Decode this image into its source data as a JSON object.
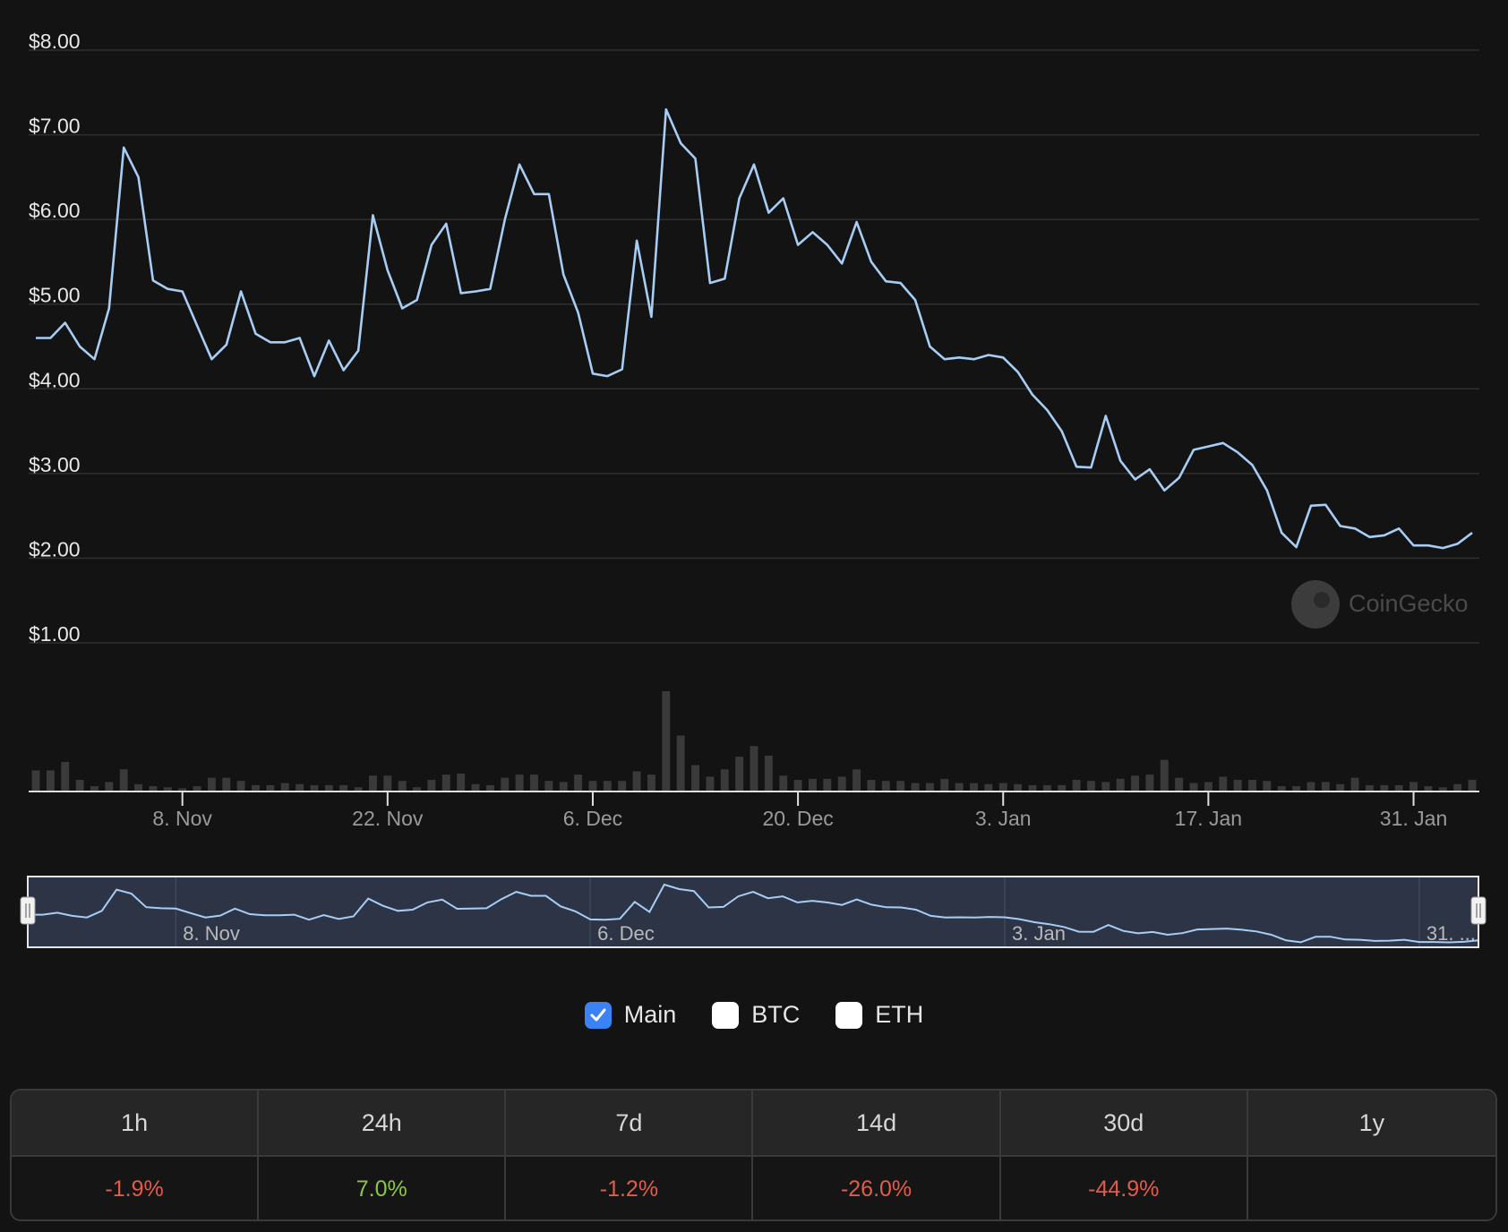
{
  "chart_data": {
    "type": "line",
    "series": [
      {
        "values": [
          4.6,
          4.6,
          4.78,
          4.5,
          4.35,
          4.95,
          6.85,
          6.5,
          5.28,
          5.18,
          5.15,
          4.75,
          4.35,
          4.52,
          5.15,
          4.65,
          4.55,
          4.55,
          4.6,
          4.15,
          4.57,
          4.22,
          4.45,
          6.05,
          5.4,
          4.95,
          5.05,
          5.7,
          5.95,
          5.13,
          5.15,
          5.18,
          6.0,
          6.65,
          6.3,
          6.3,
          5.35,
          4.9,
          4.18,
          4.15,
          4.23,
          5.75,
          4.85,
          7.3,
          6.9,
          6.72,
          5.25,
          5.3,
          6.25,
          6.65,
          6.08,
          6.25,
          5.7,
          5.85,
          5.7,
          5.48,
          5.97,
          5.5,
          5.27,
          5.25,
          5.05,
          4.5,
          4.35,
          4.37,
          4.35,
          4.4,
          4.37,
          4.2,
          3.93,
          3.75,
          3.5,
          3.08,
          3.07,
          3.68,
          3.15,
          2.93,
          3.05,
          2.8,
          2.95,
          3.28,
          3.32,
          3.36,
          3.25,
          3.1,
          2.8,
          2.3,
          2.13,
          2.62,
          2.63,
          2.38,
          2.35,
          2.25,
          2.27,
          2.35,
          2.15,
          2.15,
          2.12,
          2.17,
          2.3
        ]
      }
    ],
    "volume": [
      2.0,
      2.0,
      2.8,
      1.1,
      0.5,
      0.9,
      2.1,
      0.7,
      0.5,
      0.4,
      0.3,
      0.5,
      1.3,
      1.3,
      1.0,
      0.6,
      0.6,
      0.8,
      0.7,
      0.6,
      0.6,
      0.6,
      0.4,
      1.5,
      1.5,
      1.0,
      0.4,
      1.1,
      1.6,
      1.7,
      0.7,
      0.6,
      1.3,
      1.6,
      1.6,
      1.0,
      0.9,
      1.6,
      1.0,
      1.0,
      1.0,
      1.9,
      1.6,
      9.5,
      5.3,
      2.5,
      1.4,
      2.1,
      3.3,
      4.3,
      3.4,
      1.5,
      1.1,
      1.2,
      1.2,
      1.4,
      2.1,
      1.1,
      1.0,
      1.0,
      0.8,
      0.8,
      1.2,
      0.8,
      0.8,
      0.7,
      0.8,
      0.7,
      0.6,
      0.6,
      0.6,
      1.1,
      1.0,
      0.9,
      1.2,
      1.5,
      1.6,
      3.0,
      1.3,
      0.8,
      0.9,
      1.4,
      1.1,
      1.1,
      1.0,
      0.5,
      0.5,
      0.9,
      0.9,
      0.7,
      1.3,
      0.6,
      0.6,
      0.6,
      0.9,
      0.5,
      0.4,
      0.7,
      1.1
    ],
    "ylim": [
      1,
      8
    ],
    "y_ticks": [
      "$8.00",
      "$7.00",
      "$6.00",
      "$5.00",
      "$4.00",
      "$3.00",
      "$2.00",
      "$1.00"
    ],
    "y_tick_values": [
      8,
      7,
      6,
      5,
      4,
      3,
      2,
      1
    ],
    "x_ticks": [
      {
        "label": "8. Nov",
        "index": 10
      },
      {
        "label": "22. Nov",
        "index": 24
      },
      {
        "label": "6. Dec",
        "index": 38
      },
      {
        "label": "20. Dec",
        "index": 52
      },
      {
        "label": "3. Jan",
        "index": 66
      },
      {
        "label": "17. Jan",
        "index": 80
      },
      {
        "label": "31. Jan",
        "index": 94
      }
    ],
    "navigator_labels": [
      {
        "label": "8. Nov",
        "index": 10
      },
      {
        "label": "6. Dec",
        "index": 38
      },
      {
        "label": "3. Jan",
        "index": 66
      },
      {
        "label": "31. ...",
        "index": 94
      }
    ],
    "line_color": "#a8cdf5",
    "grid": true
  },
  "watermark": "CoinGecko",
  "legend": [
    {
      "label": "Main",
      "checked": true
    },
    {
      "label": "BTC",
      "checked": false
    },
    {
      "label": "ETH",
      "checked": false
    }
  ],
  "performance": {
    "headers": [
      "1h",
      "24h",
      "7d",
      "14d",
      "30d",
      "1y"
    ],
    "values": [
      "-1.9%",
      "7.0%",
      "-1.2%",
      "-26.0%",
      "-44.9%",
      ""
    ]
  },
  "colors": {
    "background": "#131313",
    "negative": "#e25b4b",
    "positive": "#8dc647",
    "checkbox_checked": "#3b82f6"
  }
}
